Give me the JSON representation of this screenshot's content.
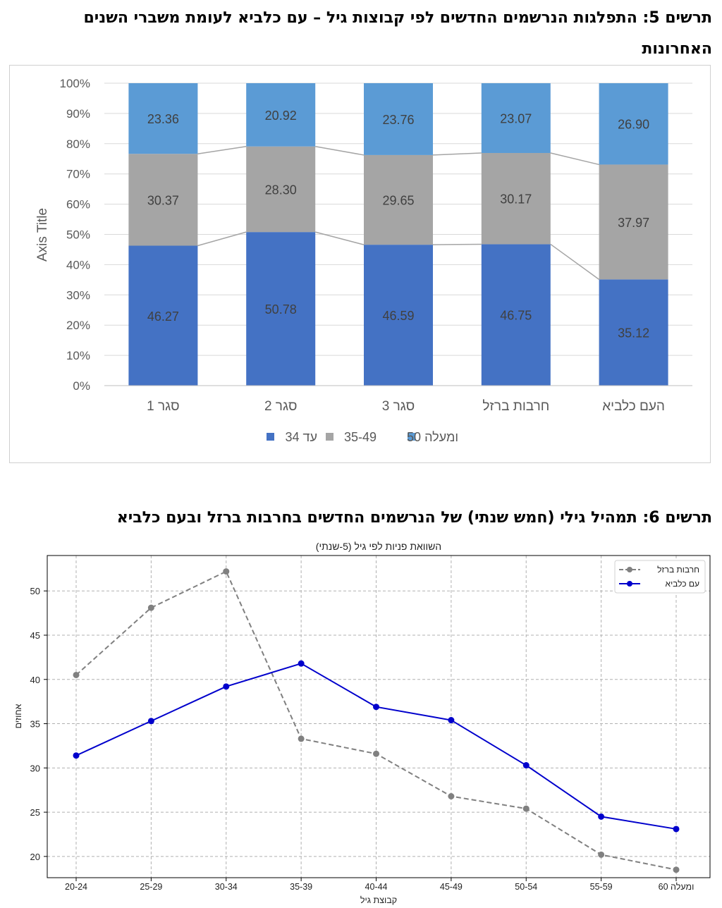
{
  "figure5": {
    "heading": "תרשים 5: התפלגות הנרשמים החדשים לפי קבוצות גיל – עם כלביא לעומת משברי השנים האחרונות",
    "chart_data": {
      "type": "bar",
      "stacked": true,
      "ylabel": "Axis Title",
      "y_ticks": [
        "0%",
        "10%",
        "20%",
        "30%",
        "40%",
        "50%",
        "60%",
        "70%",
        "80%",
        "90%",
        "100%"
      ],
      "ylim": [
        0,
        100
      ],
      "categories": [
        "סגר 1",
        "סגר 2",
        "סגר 3",
        "חרבות ברזל",
        "העם כלביא"
      ],
      "series": [
        {
          "name": "עד 34",
          "color": "#4472c4",
          "values": [
            46.27,
            50.78,
            46.59,
            46.75,
            35.12
          ]
        },
        {
          "name": "35-49",
          "color": "#a5a5a5",
          "values": [
            30.37,
            28.3,
            29.65,
            30.17,
            37.97
          ]
        },
        {
          "name": "50 ומעלה",
          "color": "#5b9bd5",
          "values": [
            23.36,
            20.92,
            23.76,
            23.07,
            26.9
          ]
        }
      ],
      "value_labels": [
        [
          "46.27",
          "50.78",
          "46.59",
          "46.75",
          "35.12"
        ],
        [
          "30.37",
          "28.30",
          "29.65",
          "30.17",
          "37.97"
        ],
        [
          "23.36",
          "20.92",
          "23.76",
          "23.07",
          "26.90"
        ]
      ],
      "series_lines": true,
      "grid": true,
      "legend_position": "bottom"
    }
  },
  "figure6": {
    "heading": "תרשים 6: תמהיל גילי (חמש שנתי) של הנרשמים החדשים בחרבות ברזל ובעם כלביא",
    "chart_data": {
      "type": "line",
      "title": "השוואת פניות לפי גיל (5-שנתי)",
      "xlabel": "קבוצת גיל",
      "ylabel": "אחוזים",
      "categories": [
        "20-24",
        "25-29",
        "30-34",
        "35-39",
        "40-44",
        "45-49",
        "50-54",
        "55-59",
        "60 ומעלה"
      ],
      "y_ticks": [
        "20",
        "25",
        "30",
        "35",
        "40",
        "45",
        "50"
      ],
      "ylim": [
        17.6,
        54
      ],
      "series": [
        {
          "name": "חרבות ברזל",
          "color": "#808080",
          "dashed": true,
          "values": [
            40.5,
            48.1,
            52.2,
            33.3,
            31.6,
            26.8,
            25.4,
            20.2,
            18.5
          ]
        },
        {
          "name": "עם כלביא",
          "color": "#0000cc",
          "dashed": false,
          "values": [
            31.4,
            35.3,
            39.2,
            41.8,
            36.9,
            35.4,
            30.3,
            24.5,
            23.1
          ]
        }
      ],
      "grid": true,
      "legend_position": "top-right"
    }
  }
}
